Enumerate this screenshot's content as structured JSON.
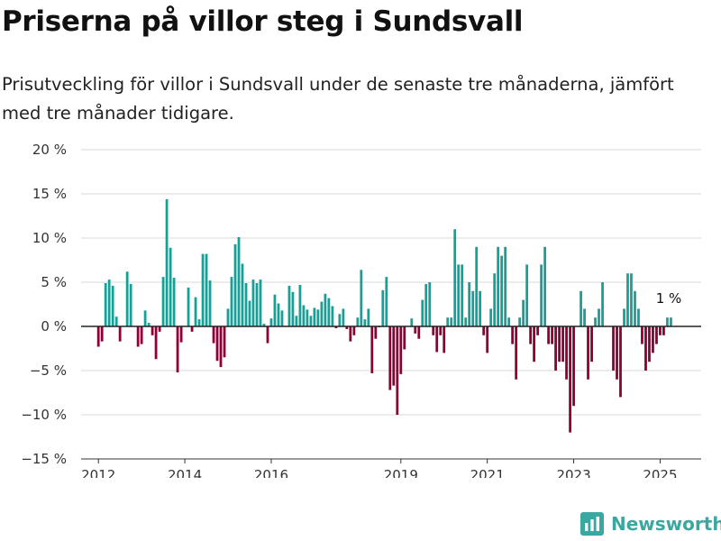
{
  "title": "Priserna på villor steg i Sundsvall",
  "subtitle": "Prisutveckling för villor i Sundsvall under de senaste tre månaderna, jämfört med tre månader tidigare.",
  "brand": {
    "name": "Newsworthy",
    "icon": "bar-chart-logo-icon"
  },
  "colors": {
    "positive": "#17a097",
    "negative": "#8c0036",
    "grid": "#d9d9d9",
    "zero_line": "#222222"
  },
  "chart_data": {
    "type": "bar",
    "title": "Priserna på villor steg i Sundsvall",
    "xlabel": "",
    "ylabel": "",
    "grid": true,
    "x_range": [
      2011.6,
      2025.95
    ],
    "ylim": [
      -15,
      20
    ],
    "y_ticks": [
      20,
      15,
      10,
      5,
      0,
      -5,
      -10,
      -15
    ],
    "y_tick_labels": [
      "20 %",
      "15 %",
      "10 %",
      "5 %",
      "0 %",
      "−5 %",
      "−10 %",
      "−15 %"
    ],
    "x_ticks": [
      2012,
      2014,
      2016,
      2019,
      2021,
      2023,
      2025
    ],
    "x_tick_labels": [
      "2012",
      "2014",
      "2016",
      "2019",
      "2021",
      "2023",
      "2025"
    ],
    "annotation": {
      "text": "1 %",
      "x": 2025.2,
      "y": 1
    },
    "x": [
      2012.0,
      2012.083,
      2012.167,
      2012.25,
      2012.333,
      2012.417,
      2012.5,
      2012.583,
      2012.667,
      2012.75,
      2012.833,
      2012.917,
      2013.0,
      2013.083,
      2013.167,
      2013.25,
      2013.333,
      2013.417,
      2013.5,
      2013.583,
      2013.667,
      2013.75,
      2013.833,
      2013.917,
      2014.0,
      2014.083,
      2014.167,
      2014.25,
      2014.333,
      2014.417,
      2014.5,
      2014.583,
      2014.667,
      2014.75,
      2014.833,
      2014.917,
      2015.0,
      2015.083,
      2015.167,
      2015.25,
      2015.333,
      2015.417,
      2015.5,
      2015.583,
      2015.667,
      2015.75,
      2015.833,
      2015.917,
      2016.0,
      2016.083,
      2016.167,
      2016.25,
      2016.333,
      2016.417,
      2016.5,
      2016.583,
      2016.667,
      2016.75,
      2016.833,
      2016.917,
      2017.0,
      2017.083,
      2017.167,
      2017.25,
      2017.333,
      2017.417,
      2017.5,
      2017.583,
      2017.667,
      2017.75,
      2017.833,
      2017.917,
      2018.0,
      2018.083,
      2018.167,
      2018.25,
      2018.333,
      2018.417,
      2018.5,
      2018.583,
      2018.667,
      2018.75,
      2018.833,
      2018.917,
      2019.0,
      2019.083,
      2019.167,
      2019.25,
      2019.333,
      2019.417,
      2019.5,
      2019.583,
      2019.667,
      2019.75,
      2019.833,
      2019.917,
      2020.0,
      2020.083,
      2020.167,
      2020.25,
      2020.333,
      2020.417,
      2020.5,
      2020.583,
      2020.667,
      2020.75,
      2020.833,
      2020.917,
      2021.0,
      2021.083,
      2021.167,
      2021.25,
      2021.333,
      2021.417,
      2021.5,
      2021.583,
      2021.667,
      2021.75,
      2021.833,
      2021.917,
      2022.0,
      2022.083,
      2022.167,
      2022.25,
      2022.333,
      2022.417,
      2022.5,
      2022.583,
      2022.667,
      2022.75,
      2022.833,
      2022.917,
      2023.0,
      2023.083,
      2023.167,
      2023.25,
      2023.333,
      2023.417,
      2023.5,
      2023.583,
      2023.667,
      2023.75,
      2023.833,
      2023.917,
      2024.0,
      2024.083,
      2024.167,
      2024.25,
      2024.333,
      2024.417,
      2024.5,
      2024.583,
      2024.667,
      2024.75,
      2024.833,
      2024.917,
      2025.0,
      2025.083,
      2025.167,
      2025.25
    ],
    "values": [
      -2.3,
      -1.7,
      4.9,
      5.3,
      4.6,
      1.1,
      -1.7,
      0.0,
      6.2,
      4.8,
      0.0,
      -2.3,
      -2.0,
      1.8,
      0.4,
      -1.0,
      -3.7,
      -0.6,
      5.6,
      14.4,
      8.9,
      5.5,
      -5.2,
      -1.8,
      0.0,
      4.4,
      -0.6,
      3.3,
      0.8,
      8.2,
      8.2,
      5.2,
      -1.9,
      -3.9,
      -4.6,
      -3.5,
      2.0,
      5.6,
      9.3,
      10.1,
      7.1,
      4.9,
      2.9,
      5.3,
      4.9,
      5.3,
      0.3,
      -1.9,
      0.9,
      3.6,
      2.6,
      1.8,
      0.0,
      4.6,
      3.9,
      1.2,
      4.7,
      2.4,
      1.9,
      1.2,
      2.1,
      1.9,
      2.8,
      3.7,
      3.2,
      2.3,
      -0.2,
      1.4,
      2.0,
      -0.3,
      -1.7,
      -1.0,
      1.0,
      6.4,
      0.8,
      2.0,
      -5.3,
      -1.4,
      -0.1,
      4.1,
      5.6,
      -7.2,
      -6.7,
      -10.0,
      -5.4,
      -2.6,
      0.0,
      0.9,
      -0.8,
      -1.4,
      3.0,
      4.8,
      5.0,
      -1.0,
      -2.9,
      -1.0,
      -3.0,
      1.0,
      1.0,
      11.0,
      7.0,
      7.0,
      1.0,
      5.0,
      4.0,
      9.0,
      4.0,
      -1.0,
      -3.0,
      2.0,
      6.0,
      9.0,
      8.0,
      9.0,
      1.0,
      -2.0,
      -6.0,
      1.0,
      3.0,
      7.0,
      -2.0,
      -4.0,
      -1.0,
      7.0,
      9.0,
      -2.0,
      -2.0,
      -5.0,
      -4.0,
      -4.0,
      -6.0,
      -12.0,
      -9.0,
      0.0,
      4.0,
      2.0,
      -6.0,
      -4.0,
      1.0,
      2.0,
      5.0,
      0.0,
      0.0,
      -5.0,
      -6.0,
      -8.0,
      2.0,
      6.0,
      6.0,
      4.0,
      2.0,
      -2.0,
      -5.0,
      -4.0,
      -3.0,
      -2.0,
      -1.0,
      -1.0,
      1.0,
      1.0
    ]
  }
}
